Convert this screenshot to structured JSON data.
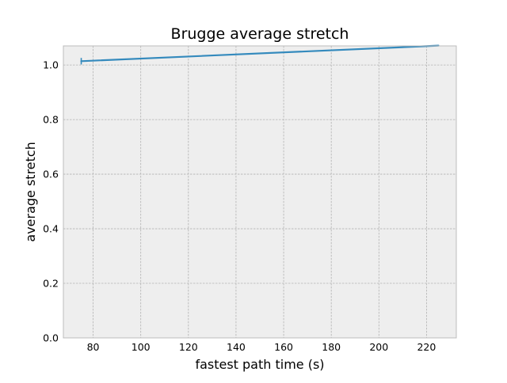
{
  "chart_data": {
    "type": "line",
    "title": "Brugge average stretch",
    "xlabel": "fastest path time (s)",
    "ylabel": "average stretch",
    "xlim": [
      67.5,
      232.5
    ],
    "ylim": [
      0.0,
      1.07
    ],
    "xticks": [
      80,
      100,
      120,
      140,
      160,
      180,
      200,
      220
    ],
    "yticks": [
      0.0,
      0.2,
      0.4,
      0.6,
      0.8,
      1.0
    ],
    "ytick_labels": [
      "0.0",
      "0.2",
      "0.4",
      "0.6",
      "0.8",
      "1.0"
    ],
    "grid": true,
    "series": [
      {
        "color": "#348abd",
        "x": [
          75,
          225
        ],
        "y": [
          1.014,
          1.071
        ],
        "errorbar": {
          "x": 75,
          "y": 1.014,
          "low": 1.002,
          "high": 1.026
        }
      }
    ]
  },
  "colors": {
    "plot_background": "#eeeeee",
    "grid": "#b2b2b2",
    "spine": "#bcbcbc",
    "line": "#348abd"
  }
}
